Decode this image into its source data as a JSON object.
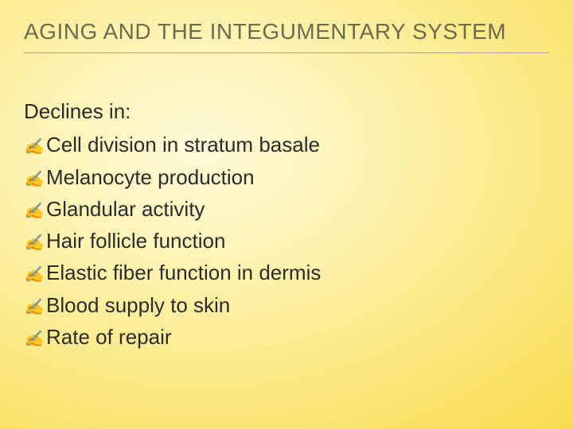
{
  "title": "AGING AND THE INTEGUMENTARY SYSTEM",
  "intro": "Declines in:",
  "bullet_glyph": "✍",
  "items": [
    "Cell division in stratum basale",
    "Melanocyte production",
    "Glandular activity",
    "Hair follicle function",
    "Elastic fiber function in dermis",
    "Blood supply to skin",
    "Rate of repair"
  ],
  "colors": {
    "title_text": "#6b6b50",
    "title_rule": "#a8a878",
    "body_text": "#2b2b2b",
    "bullet": "#b89a2e",
    "bg_inner": "#fef9d8",
    "bg_outer": "#f3c41a"
  },
  "fontsize": {
    "title": 28,
    "body": 26,
    "bullet": 20
  }
}
